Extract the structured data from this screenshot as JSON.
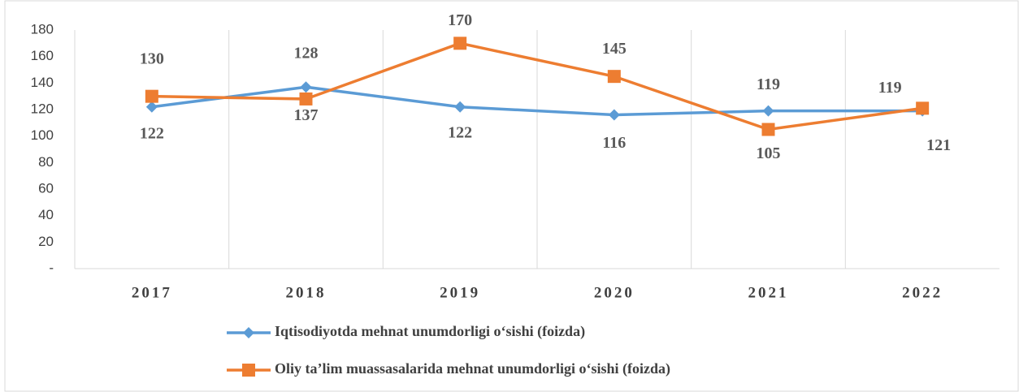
{
  "chart_data": {
    "type": "line",
    "categories": [
      "2017",
      "2018",
      "2019",
      "2020",
      "2021",
      "2022"
    ],
    "series": [
      {
        "name": "Iqtisodiyotda mehnat unumdorligi o‘sishi (foizda)",
        "color": "#5b9bd5",
        "marker": "diamond",
        "values": [
          122,
          137,
          122,
          116,
          119,
          119
        ]
      },
      {
        "name": "Oliy ta’lim muassasalarida mehnat unumdorligi o‘sishi (foizda)",
        "color": "#ed7d31",
        "marker": "square",
        "values": [
          130,
          128,
          170,
          145,
          105,
          121
        ]
      }
    ],
    "ylim": [
      0,
      180
    ],
    "yticks": [
      {
        "value": 0,
        "label": "-"
      },
      20,
      40,
      60,
      80,
      100,
      120,
      140,
      160,
      180
    ],
    "grid": "vertical"
  }
}
